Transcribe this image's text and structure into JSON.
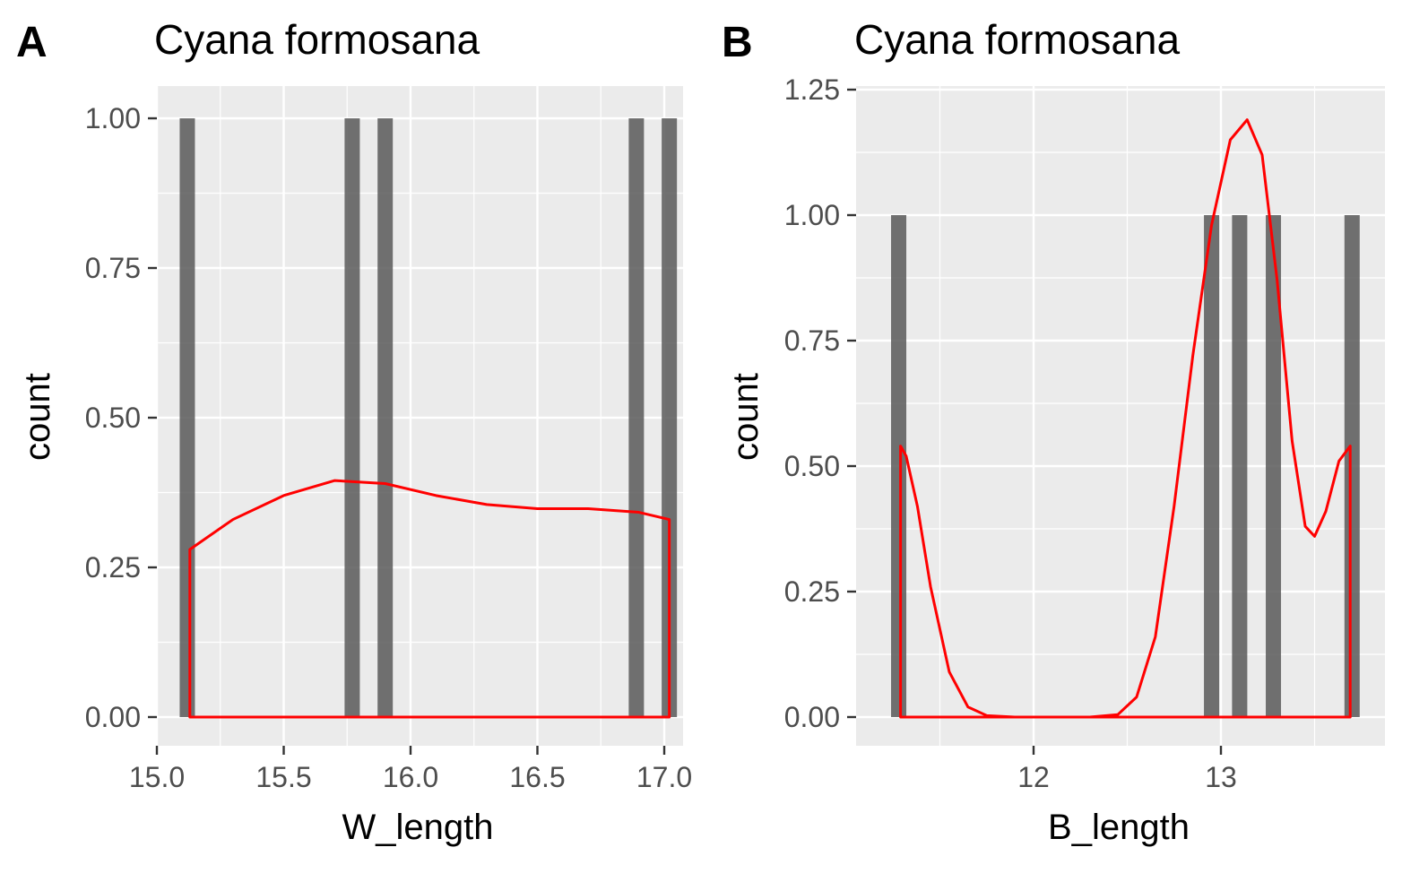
{
  "chart_data": [
    {
      "type": "bar",
      "tag": "A",
      "title": "Cyana formosana",
      "xlabel": "W_length",
      "ylabel": "count",
      "xlim": [
        15.0,
        17.05
      ],
      "ylim": [
        0,
        1.0
      ],
      "x_ticks": [
        "15.0",
        "15.5",
        "16.0",
        "16.5",
        "17.0"
      ],
      "y_ticks": [
        "0.00",
        "0.25",
        "0.50",
        "0.75",
        "1.00"
      ],
      "grid": true,
      "bars": [
        {
          "x": 15.12,
          "count": 1
        },
        {
          "x": 15.77,
          "count": 1
        },
        {
          "x": 15.9,
          "count": 1
        },
        {
          "x": 16.89,
          "count": 1
        },
        {
          "x": 17.02,
          "count": 1
        }
      ],
      "density_color": "#ff0000",
      "bar_color": "#595959",
      "density": {
        "x": [
          15.13,
          15.3,
          15.5,
          15.7,
          15.9,
          16.1,
          16.3,
          16.5,
          16.7,
          16.9,
          17.02
        ],
        "y": [
          0.28,
          0.33,
          0.37,
          0.395,
          0.39,
          0.37,
          0.355,
          0.348,
          0.348,
          0.342,
          0.33
        ]
      }
    },
    {
      "type": "bar",
      "tag": "B",
      "title": "Cyana formosana",
      "xlabel": "B_length",
      "ylabel": "count",
      "xlim": [
        11.2,
        13.8
      ],
      "ylim": [
        0,
        1.25
      ],
      "x_ticks": [
        "12",
        "13"
      ],
      "y_ticks": [
        "0.00",
        "0.25",
        "0.50",
        "0.75",
        "1.00",
        "1.25"
      ],
      "grid": true,
      "bars": [
        {
          "x": 11.28,
          "count": 1
        },
        {
          "x": 12.95,
          "count": 1
        },
        {
          "x": 13.1,
          "count": 1
        },
        {
          "x": 13.28,
          "count": 1
        },
        {
          "x": 13.7,
          "count": 1
        }
      ],
      "density_color": "#ff0000",
      "bar_color": "#595959",
      "density": {
        "x": [
          11.29,
          11.32,
          11.38,
          11.45,
          11.55,
          11.65,
          11.75,
          11.9,
          12.1,
          12.3,
          12.45,
          12.55,
          12.65,
          12.75,
          12.85,
          12.95,
          13.05,
          13.14,
          13.22,
          13.3,
          13.38,
          13.45,
          13.5,
          13.56,
          13.63,
          13.69
        ],
        "y": [
          0.54,
          0.52,
          0.42,
          0.26,
          0.09,
          0.02,
          0.003,
          0.0,
          0.0,
          0.0,
          0.005,
          0.04,
          0.16,
          0.42,
          0.72,
          0.98,
          1.15,
          1.19,
          1.12,
          0.87,
          0.55,
          0.38,
          0.36,
          0.41,
          0.51,
          0.54
        ]
      }
    }
  ]
}
